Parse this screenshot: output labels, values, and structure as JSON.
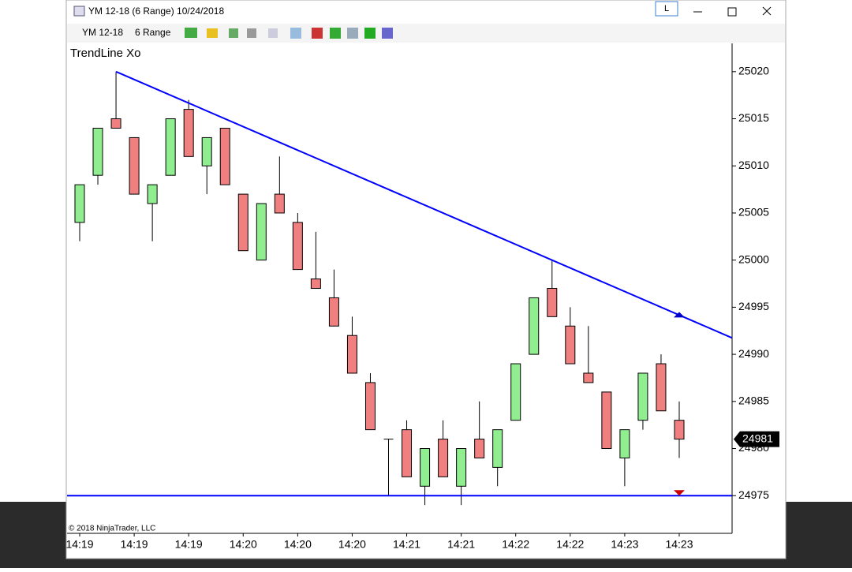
{
  "window": {
    "title": "YM 12-18 (6 Range)  10/24/2018",
    "button": "L"
  },
  "toolbar": {
    "instrument": "YM 12-18",
    "period": "6 Range"
  },
  "chart_data": {
    "type": "candlestick",
    "title": "TrendLine Xo",
    "copyright": "© 2018 NinjaTrader, LLC",
    "categories": [
      "14:19",
      null,
      null,
      "14:19",
      null,
      null,
      "14:19",
      null,
      null,
      "14:20",
      null,
      null,
      "14:20",
      null,
      null,
      "14:20",
      null,
      null,
      "14:21",
      null,
      null,
      "14:21",
      null,
      null,
      "14:22",
      null,
      null,
      "14:22",
      null,
      null,
      "14:23",
      null,
      null,
      "14:23"
    ],
    "open": [
      25004,
      25009,
      25015,
      25013,
      25006,
      25009,
      25016,
      25010,
      25014,
      25007,
      25000,
      25007,
      25004,
      24998,
      24996,
      24992,
      24987,
      24981,
      24982,
      24976,
      24981,
      24976,
      24981,
      24978,
      24983,
      24990,
      24997,
      24993,
      24988,
      24986,
      24979,
      24983,
      24989,
      24983
    ],
    "high": [
      25008,
      25014,
      25020,
      25013,
      25008,
      25015,
      25017,
      25013,
      25014,
      25007,
      25006,
      25011,
      25005,
      25003,
      24999,
      24994,
      24988,
      24981,
      24983,
      24980,
      24983,
      24980,
      24985,
      24982,
      24989,
      24996,
      25000,
      24995,
      24993,
      24986,
      24982,
      24988,
      24990,
      24985
    ],
    "low": [
      25002,
      25008,
      25014,
      25007,
      25002,
      25009,
      25011,
      25007,
      25008,
      25001,
      25000,
      25005,
      24999,
      24997,
      24993,
      24988,
      24982,
      24975,
      24977,
      24974,
      24977,
      24974,
      24979,
      24976,
      24983,
      24990,
      24994,
      24989,
      24987,
      24980,
      24976,
      24982,
      24984,
      24979
    ],
    "close": [
      25008,
      25014,
      25014,
      25007,
      25008,
      25015,
      25011,
      25013,
      25008,
      25001,
      25006,
      25005,
      24999,
      24997,
      24993,
      24988,
      24982,
      24981,
      24977,
      24980,
      24977,
      24980,
      24979,
      24982,
      24989,
      24996,
      24994,
      24989,
      24987,
      24980,
      24982,
      24988,
      24984,
      24981
    ],
    "up_color": "#90ee90",
    "down_color": "#f08080",
    "last_price": 24981,
    "trendline": {
      "x": [
        2,
        26
      ],
      "y": [
        25020,
        25000
      ],
      "color": "#0000ff"
    },
    "horizontal_line": {
      "y": 24975,
      "color": "#0000ff"
    },
    "ylim": [
      24971,
      25023
    ],
    "yticks": [
      24975,
      24980,
      24985,
      24990,
      24995,
      25000,
      25005,
      25010,
      25015,
      25020
    ]
  }
}
